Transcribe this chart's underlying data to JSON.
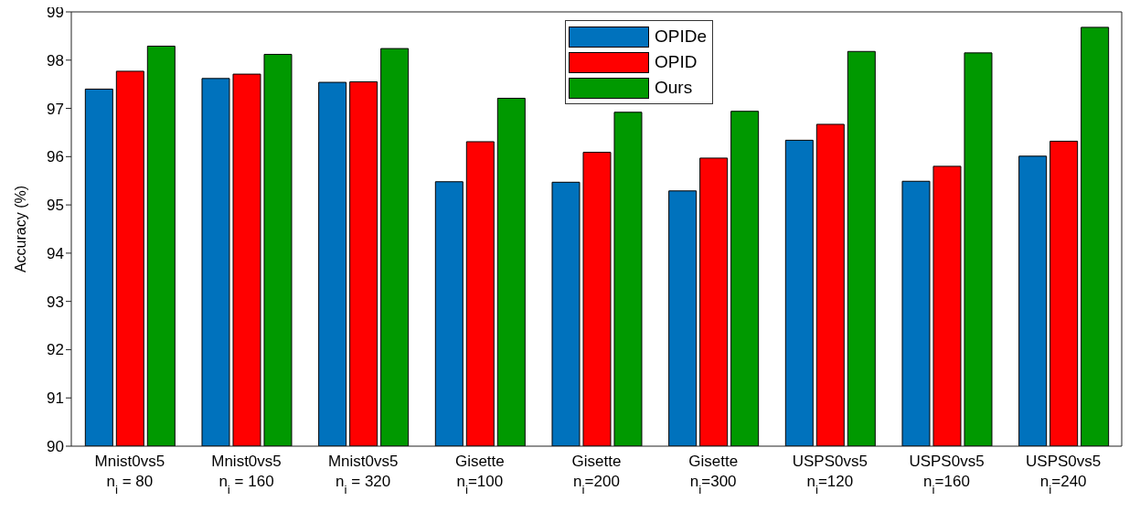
{
  "chart_data": {
    "type": "bar",
    "ylabel": "Accuracy (%)",
    "categories": [
      "Mnist0vs5\nn$_{i}$ = 80",
      "Mnist0vs5\nn$_{i}$ = 160",
      "Mnist0vs5\nn$_{i}$ = 320",
      "Gisette\nn$_{i}$=100",
      "Gisette\nn$_{i}$=200",
      "Gisette\nn$_{i}$=300",
      "USPS0vs5\nn$_{i}$=120",
      "USPS0vs5\nn$_{i}$=160",
      "USPS0vs5\nn$_{i}$=240"
    ],
    "series": [
      {
        "name": "OPIDe",
        "color": "#0072bd",
        "values": [
          97.4,
          97.62,
          97.54,
          95.48,
          95.47,
          95.29,
          96.34,
          95.49,
          96.01
        ]
      },
      {
        "name": "OPID",
        "color": "#ff0000",
        "values": [
          97.77,
          97.71,
          97.55,
          96.31,
          96.09,
          95.97,
          96.67,
          95.8,
          96.32
        ]
      },
      {
        "name": "Ours",
        "color": "#009900",
        "values": [
          98.29,
          98.12,
          98.24,
          97.21,
          96.92,
          96.94,
          98.18,
          98.15,
          98.68
        ]
      }
    ],
    "ylim": [
      90,
      99
    ],
    "yticks": [
      90,
      91,
      92,
      93,
      94,
      95,
      96,
      97,
      98,
      99
    ],
    "grid": false,
    "legend": "top"
  }
}
